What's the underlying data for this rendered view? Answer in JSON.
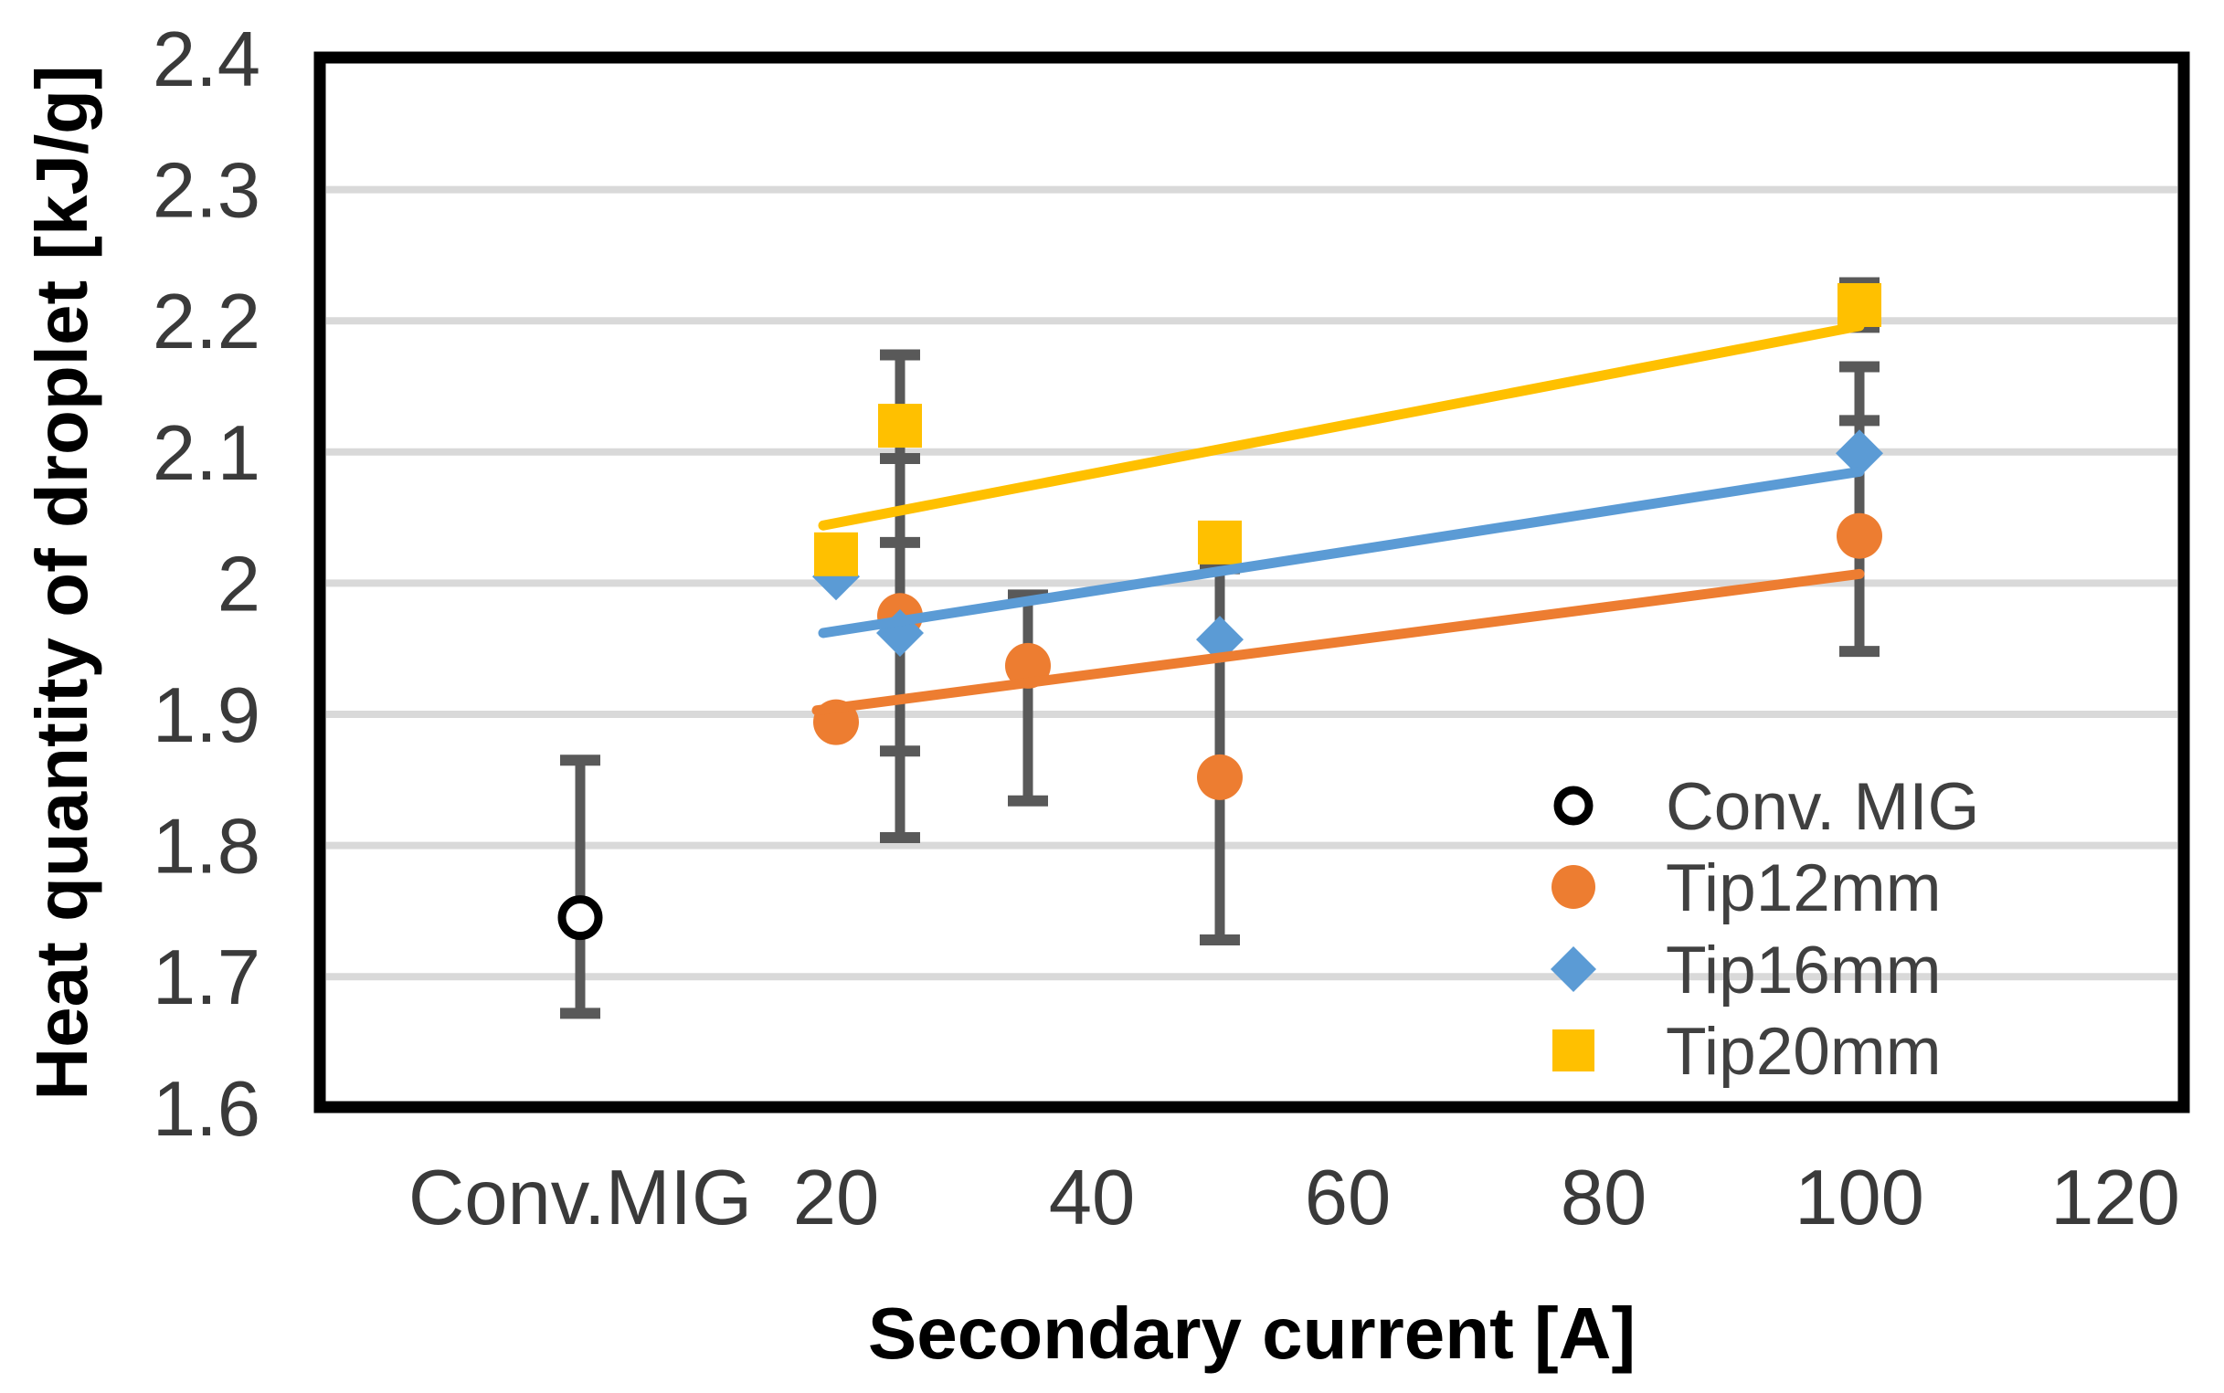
{
  "chart_data": {
    "type": "scatter",
    "title": "",
    "xlabel": "Secondary current [A]",
    "ylabel": "Heat quantity of droplet [kJ/g]",
    "grid": "horizontal",
    "legend_position": "inside-lower-right",
    "ylim": [
      1.6,
      2.4
    ],
    "xlim": [
      -20,
      125
    ],
    "y_ticks": [
      {
        "label": "2.4",
        "v": 2.4
      },
      {
        "label": "2.3",
        "v": 2.3
      },
      {
        "label": "2.2",
        "v": 2.2
      },
      {
        "label": "2.1",
        "v": 2.1
      },
      {
        "label": "2",
        "v": 2.0
      },
      {
        "label": "1.9",
        "v": 1.9
      },
      {
        "label": "1.8",
        "v": 1.8
      },
      {
        "label": "1.7",
        "v": 1.7
      },
      {
        "label": "1.6",
        "v": 1.6
      }
    ],
    "x_ticks": [
      {
        "label": "Conv.MIG",
        "x": 0
      },
      {
        "label": "20",
        "x": 20
      },
      {
        "label": "40",
        "x": 40
      },
      {
        "label": "60",
        "x": 60
      },
      {
        "label": "80",
        "x": 80
      },
      {
        "label": "100",
        "x": 100
      },
      {
        "label": "120",
        "x": 120
      }
    ],
    "gridline_values": [
      2.3,
      2.2,
      2.1,
      2.0,
      1.9,
      1.8,
      1.7
    ],
    "colors": {
      "gridline": "#d9d9d9",
      "plot_border": "#000000",
      "error_bar": "#595959",
      "tick_text": "#3a3a3a",
      "legend_text": "#404040"
    },
    "series": [
      {
        "name": "Conv. MIG",
        "marker": "open-circle",
        "color": "#000000",
        "points": [
          {
            "x": 0,
            "y": 1.745,
            "err_lo": 1.672,
            "err_hi": 1.865
          }
        ]
      },
      {
        "name": "Tip12mm",
        "marker": "circle",
        "color": "#ED7D31",
        "points": [
          {
            "x": 20,
            "y": 1.894
          },
          {
            "x": 25,
            "y": 1.975,
            "err_lo": 1.872,
            "err_hi": 2.031
          },
          {
            "x": 35,
            "y": 1.937,
            "err_lo": 1.834,
            "err_hi": 1.991
          },
          {
            "x": 50,
            "y": 1.852,
            "err_lo": 1.728,
            "err_hi": 2.011
          },
          {
            "x": 100,
            "y": 2.036,
            "err_lo": 1.948,
            "err_hi": 2.124
          }
        ],
        "trend": {
          "x1": 18.5,
          "y1": 1.903,
          "x2": 100,
          "y2": 2.007
        }
      },
      {
        "name": "Tip16mm",
        "marker": "diamond",
        "color": "#5B9BD5",
        "points": [
          {
            "x": 20,
            "y": 2.005
          },
          {
            "x": 25,
            "y": 1.962,
            "err_lo": 1.806,
            "err_hi": 2.118
          },
          {
            "x": 50,
            "y": 1.957
          },
          {
            "x": 100,
            "y": 2.099,
            "err_lo": 2.033,
            "err_hi": 2.165
          }
        ],
        "trend": {
          "x1": 19,
          "y1": 1.962,
          "x2": 100,
          "y2": 2.085
        }
      },
      {
        "name": "Tip20mm",
        "marker": "square",
        "color": "#FFC000",
        "points": [
          {
            "x": 20,
            "y": 2.022
          },
          {
            "x": 25,
            "y": 2.12,
            "err_lo": 2.095,
            "err_hi": 2.174
          },
          {
            "x": 50,
            "y": 2.031
          },
          {
            "x": 100,
            "y": 2.212,
            "err_lo": 2.195,
            "err_hi": 2.229
          }
        ],
        "trend": {
          "x1": 19,
          "y1": 2.044,
          "x2": 100,
          "y2": 2.196
        }
      }
    ]
  }
}
